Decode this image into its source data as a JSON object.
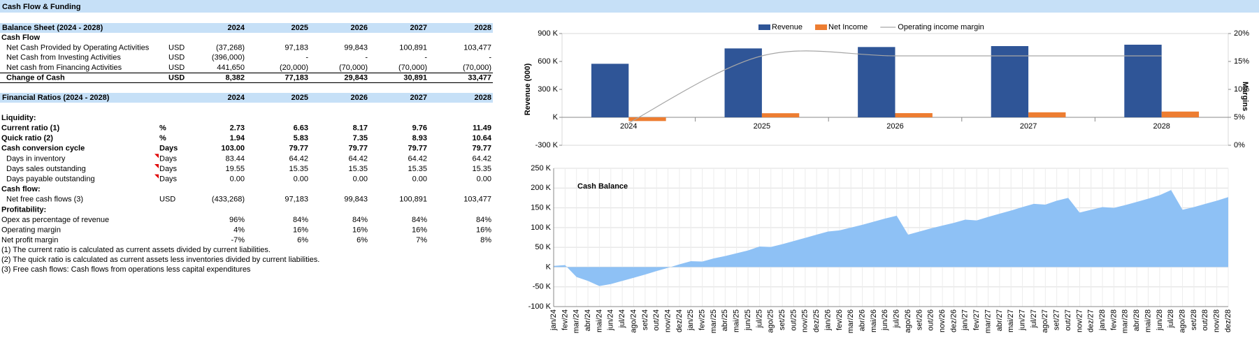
{
  "header": {
    "title": "Cash Flow & Funding"
  },
  "tables": [
    {
      "title": "Balance Sheet (2024 - 2028)",
      "years": [
        "2024",
        "2025",
        "2026",
        "2027",
        "2028"
      ],
      "rows": [
        {
          "label": "Cash Flow"
        },
        {
          "label": "Net Cash Provided by Operating Activities",
          "unit": "USD",
          "values": [
            "(37,268)",
            "97,183",
            "99,843",
            "100,891",
            "103,477"
          ]
        },
        {
          "label": "Net Cash from Investing Activities",
          "unit": "USD",
          "values": [
            "(396,000)",
            "-",
            "-",
            "-",
            "-"
          ]
        },
        {
          "label": "Net cash from Financing Activities",
          "unit": "USD",
          "values": [
            "441,650",
            "(20,000)",
            "(70,000)",
            "(70,000)",
            "(70,000)"
          ]
        },
        {
          "label": "Change of Cash",
          "unit": "USD",
          "values": [
            "8,382",
            "77,183",
            "29,843",
            "30,891",
            "33,477"
          ]
        }
      ]
    },
    {
      "title": "Financial Ratios (2024 - 2028)",
      "years": [
        "2024",
        "2025",
        "2026",
        "2027",
        "2028"
      ],
      "rows": [
        {
          "label": "Liquidity:"
        },
        {
          "label": "Current ratio (1)",
          "unit": "%",
          "values": [
            "2.73",
            "6.63",
            "8.17",
            "9.76",
            "11.49"
          ]
        },
        {
          "label": "Quick ratio (2)",
          "unit": "%",
          "values": [
            "1.94",
            "5.83",
            "7.35",
            "8.93",
            "10.64"
          ]
        },
        {
          "label": "Cash conversion cycle",
          "unit": "Days",
          "values": [
            "103.00",
            "79.77",
            "79.77",
            "79.77",
            "79.77"
          ]
        },
        {
          "label": "Days in inventory",
          "unit": "Days",
          "values": [
            "83.44",
            "64.42",
            "64.42",
            "64.42",
            "64.42"
          ]
        },
        {
          "label": "Days sales outstanding",
          "unit": "Days",
          "values": [
            "19.55",
            "15.35",
            "15.35",
            "15.35",
            "15.35"
          ]
        },
        {
          "label": "Days payable outstanding",
          "unit": "Days",
          "values": [
            "0.00",
            "0.00",
            "0.00",
            "0.00",
            "0.00"
          ]
        },
        {
          "label": "Cash flow:"
        },
        {
          "label": "Net free cash flows (3)",
          "unit": "USD",
          "values": [
            "(433,268)",
            "97,183",
            "99,843",
            "100,891",
            "103,477"
          ]
        },
        {
          "label": "Profitability:"
        },
        {
          "label": "Opex as percentage of revenue",
          "values": [
            "96%",
            "84%",
            "84%",
            "84%",
            "84%"
          ]
        },
        {
          "label": "Operating margin",
          "values": [
            "4%",
            "16%",
            "16%",
            "16%",
            "16%"
          ]
        },
        {
          "label": "Net profit margin",
          "values": [
            "-7%",
            "6%",
            "6%",
            "7%",
            "8%"
          ]
        }
      ]
    }
  ],
  "notes": [
    "(1) The current ratio is calculated as current assets divided by current liabilities.",
    "(2) The quick ratio is calculated as current assets less inventories divided by current liabilities.",
    "(3)  Free cash flows:  Cash flows from operations less capital expenditures"
  ],
  "chart_data": [
    {
      "type": "bar",
      "categories": [
        "2024",
        "2025",
        "2026",
        "2027",
        "2028"
      ],
      "y_label": "Revenue (000)",
      "y2_label": "Margins",
      "series": [
        {
          "name": "Revenue",
          "color": "#2f5597",
          "values": [
            575,
            740,
            755,
            765,
            780
          ]
        },
        {
          "name": "Net Income",
          "color": "#ed7d31",
          "values": [
            -40,
            44,
            45,
            54,
            62
          ]
        },
        {
          "name": "Operating income margin",
          "color": "#a6a6a6",
          "type": "line",
          "axis": "y2",
          "values": [
            4,
            16,
            16,
            16,
            16
          ]
        }
      ],
      "ylim": [
        -300,
        900
      ],
      "yticks": [
        {
          "value": -300,
          "label": "-300 K"
        },
        {
          "value": 0,
          "label": "K"
        },
        {
          "value": 300,
          "label": "300 K"
        },
        {
          "value": 600,
          "label": "600 K"
        },
        {
          "value": 900,
          "label": "900 K"
        }
      ],
      "y2lim": [
        0,
        20
      ],
      "y2ticks": [
        {
          "value": 0,
          "label": "0%"
        },
        {
          "value": 5,
          "label": "5%"
        },
        {
          "value": 10,
          "label": "10%"
        },
        {
          "value": 15,
          "label": "15%"
        },
        {
          "value": 20,
          "label": "20%"
        }
      ],
      "legend": "top"
    },
    {
      "type": "area",
      "title": "Cash Balance",
      "color": "#8ec1f5",
      "grid": true,
      "categories": [
        "jan/24",
        "fev/24",
        "mar/24",
        "abr/24",
        "mai/24",
        "jun/24",
        "jul/24",
        "ago/24",
        "set/24",
        "out/24",
        "nov/24",
        "dez/24",
        "jan/25",
        "fev/25",
        "mar/25",
        "abr/25",
        "mai/25",
        "jun/25",
        "jul/25",
        "ago/25",
        "set/25",
        "out/25",
        "nov/25",
        "dez/25",
        "jan/26",
        "fev/26",
        "mar/26",
        "abr/26",
        "mai/26",
        "jun/26",
        "jul/26",
        "ago/26",
        "set/26",
        "out/26",
        "nov/26",
        "dez/26",
        "jan/27",
        "fev/27",
        "mar/27",
        "abr/27",
        "mai/27",
        "jun/27",
        "jul/27",
        "ago/27",
        "set/27",
        "out/27",
        "nov/27",
        "dez/27",
        "jan/28",
        "fev/28",
        "mar/28",
        "abr/28",
        "mai/28",
        "jun/28",
        "jul/28",
        "ago/28",
        "set/28",
        "out/28",
        "nov/28",
        "dez/28"
      ],
      "values": [
        3,
        5,
        -25,
        -35,
        -48,
        -43,
        -35,
        -27,
        -19,
        -10,
        -2,
        7,
        15,
        14,
        22,
        28,
        35,
        42,
        52,
        51,
        58,
        66,
        74,
        82,
        90,
        93,
        100,
        107,
        115,
        123,
        130,
        82,
        90,
        98,
        105,
        112,
        120,
        118,
        127,
        135,
        143,
        152,
        160,
        158,
        168,
        175,
        138,
        145,
        152,
        150,
        157,
        165,
        173,
        182,
        195,
        145,
        152,
        160,
        168,
        177
      ],
      "ylim": [
        -100,
        250
      ],
      "yticks": [
        {
          "value": -100,
          "label": "-100 K"
        },
        {
          "value": -50,
          "label": "-50 K"
        },
        {
          "value": 0,
          "label": "K"
        },
        {
          "value": 50,
          "label": "50 K"
        },
        {
          "value": 100,
          "label": "100 K"
        },
        {
          "value": 150,
          "label": "150 K"
        },
        {
          "value": 200,
          "label": "200 K"
        },
        {
          "value": 250,
          "label": "250 K"
        }
      ]
    }
  ]
}
